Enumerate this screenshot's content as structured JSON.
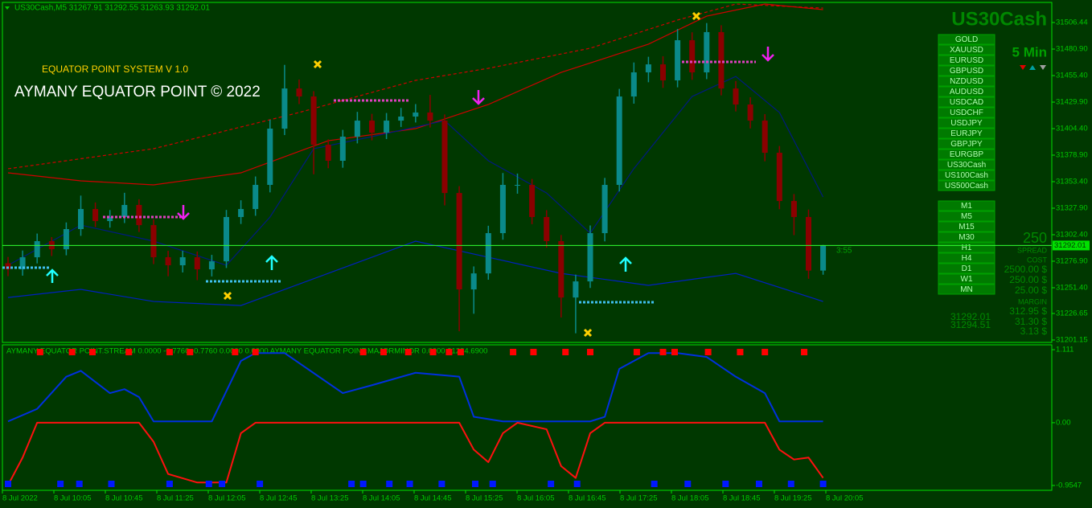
{
  "header": {
    "symbol_line": "US30Cash,M5  31267.91 31292.55 31263.93 31292.01",
    "system_title": "EQUATOR POINT SYSTEM V 1.0",
    "copyright": "AYMANY EQUATOR POINT © 2022",
    "symbol": "US30Cash",
    "timeframe": "5 Min",
    "timer": "3:55",
    "indicator_line": "AYMANY EQUATOR POINT.STREAM 0.0000 -0.7760 -0.7760 0.0000 0.0000  AYMANY EQUATOR POINT.MAJORMINOR 0.0000 31284.6900"
  },
  "symbols": [
    "GOLD",
    "XAUUSD",
    "EURUSD",
    "GBPUSD",
    "NZDUSD",
    "AUDUSD",
    "USDCAD",
    "USDCHF",
    "USDJPY",
    "EURJPY",
    "GBPJPY",
    "EURGBP",
    "US30Cash",
    "US100Cash",
    "US500Cash"
  ],
  "timeframes": [
    "M1",
    "M5",
    "M15",
    "M30",
    "H1",
    "H4",
    "D1",
    "W1",
    "MN"
  ],
  "panel": {
    "spread_value": "250",
    "spread_label": "SPREAD",
    "cost_label": "COST",
    "costs": [
      "2500.00 $",
      "250.00 $",
      "25.00 $"
    ],
    "margin_label": "MARGIN",
    "margins": [
      "312.95 $",
      "31.30 $",
      "3.13 $"
    ],
    "bid": "31292.01",
    "ask": "31294.51"
  },
  "chart_data": [
    {
      "type": "candlestick",
      "ylim": [
        31198.82,
        31525.76
      ],
      "yticks": [
        31506.44,
        {
          "value": 31480.9,
          "label": "31480.90"
        },
        {
          "value": 31455.4,
          "label": "31455.40"
        },
        {
          "value": 31429.9,
          "label": "31429.90"
        },
        {
          "value": 31404.4,
          "label": "31404.40"
        },
        {
          "value": 31378.9,
          "label": "31378.90"
        },
        {
          "value": 31353.4,
          "label": "31353.40"
        },
        {
          "value": 31327.9,
          "label": "31327.90"
        },
        {
          "value": 31302.4,
          "label": "31302.40"
        },
        {
          "value": 31276.9,
          "label": "31276.90"
        },
        {
          "value": 31251.4,
          "label": "31251.40"
        },
        31226.65,
        31201.15
      ],
      "up_color": "#0a8a8a",
      "down_color": "#8b0000",
      "open": [
        31275.0,
        31269.1,
        31280.7,
        31296.2,
        31288.4,
        31307.8,
        31327.1,
        31315.5,
        31319.4,
        31331.0,
        31311.6,
        31280.7,
        31273.0,
        31280.7,
        31269.1,
        31276.8,
        31319.4,
        31327.1,
        31350.3,
        31404.4,
        31443.0,
        31435.3,
        31388.9,
        31373.5,
        31396.7,
        31412.1,
        31400.5,
        31412.1,
        31416.0,
        31419.9,
        31412.1,
        31342.5,
        31249.8,
        31265.2,
        31303.9,
        31350.3,
        31350.3,
        31319.4,
        31296.2,
        31242.0,
        31257.5,
        31303.9,
        31350.3,
        31435.3,
        31458.5,
        31466.2,
        31450.8,
        31489.4,
        31458.5,
        31497.2,
        31443.0,
        31427.6,
        31412.1,
        31381.2,
        31334.8,
        31319.4,
        31267.91
      ],
      "high": [
        31281.0,
        31287.2,
        31303.5,
        31300.1,
        31314.2,
        31340.0,
        31333.4,
        31326.1,
        31342.7,
        31336.5,
        31317.3,
        31286.9,
        31287.0,
        31286.3,
        31283.0,
        31326.2,
        31335.5,
        31358.4,
        31412.9,
        31465.7,
        31451.6,
        31440.4,
        31394.1,
        31403.2,
        31420.5,
        31418.6,
        31419.4,
        31424.3,
        31428.0,
        31436.8,
        31418.0,
        31349.1,
        31271.9,
        31311.0,
        31361.7,
        31361.2,
        31356.0,
        31326.0,
        31302.1,
        31264.0,
        31311.3,
        31357.0,
        31442.6,
        31468.0,
        31473.5,
        31474.0,
        31500.2,
        31497.0,
        31505.9,
        31503.8,
        31450.1,
        31434.5,
        31418.3,
        31387.7,
        31341.5,
        31326.6,
        31292.55
      ],
      "low": [
        31262.5,
        31263.0,
        31274.8,
        31281.9,
        31282.6,
        31301.3,
        31309.8,
        31309.2,
        31313.6,
        31305.0,
        31274.1,
        31262.4,
        31266.1,
        31258.7,
        31262.3,
        31270.4,
        31312.7,
        31320.6,
        31343.1,
        31398.2,
        31428.0,
        31360.5,
        31366.3,
        31366.8,
        31390.2,
        31393.1,
        31394.4,
        31406.0,
        31410.3,
        31405.5,
        31330.6,
        31209.5,
        31226.4,
        31259.1,
        31297.6,
        31341.8,
        31312.5,
        31289.9,
        31222.8,
        31207.6,
        31251.2,
        31296.0,
        31344.0,
        31428.4,
        31449.0,
        31443.6,
        31444.1,
        31451.3,
        31452.0,
        31436.4,
        31420.9,
        31404.6,
        31373.0,
        31326.9,
        31302.0,
        31260.0,
        31263.93
      ],
      "close": [
        31269.1,
        31280.7,
        31296.2,
        31288.4,
        31307.8,
        31327.1,
        31315.5,
        31319.4,
        31331.0,
        31311.6,
        31280.7,
        31273.0,
        31280.7,
        31269.1,
        31276.8,
        31319.4,
        31327.1,
        31350.3,
        31404.4,
        31443.0,
        31435.3,
        31388.9,
        31373.5,
        31396.7,
        31412.1,
        31400.5,
        31412.1,
        31416.0,
        31419.9,
        31412.1,
        31342.5,
        31249.8,
        31265.2,
        31303.9,
        31350.3,
        31350.3,
        31319.4,
        31296.2,
        31242.0,
        31257.5,
        31303.9,
        31350.3,
        31435.3,
        31458.5,
        31466.2,
        31450.8,
        31489.4,
        31458.5,
        31497.2,
        31443.0,
        31427.6,
        31412.1,
        31381.2,
        31334.8,
        31319.4,
        31267.91,
        31292.01
      ],
      "lines": [
        {
          "color": "#d00000",
          "dash": false,
          "x": [
            0,
            5,
            10,
            16,
            22,
            28,
            33,
            38,
            44,
            48,
            52,
            56
          ],
          "values": [
            31361.9,
            31354.2,
            31350.3,
            31361.9,
            31392.8,
            31404.4,
            31427.6,
            31458.5,
            31485.6,
            31512.6,
            31524.2,
            31518.8
          ]
        },
        {
          "color": "#d00000",
          "dash": true,
          "x": [
            0,
            10,
            20,
            28,
            33,
            40,
            46,
            50,
            56
          ],
          "values": [
            31365.8,
            31385.1,
            31419.9,
            31450.8,
            31462.4,
            31481.7,
            31508.8,
            31524.2,
            31520.3
          ]
        },
        {
          "color": "#0020c0",
          "dash": false,
          "x": [
            0,
            5,
            10,
            16,
            22,
            28,
            33,
            38,
            44,
            50,
            56
          ],
          "values": [
            31242.0,
            31249.8,
            31238.2,
            31234.3,
            31265.2,
            31296.2,
            31280.7,
            31265.2,
            31253.7,
            31265.2,
            31238.2
          ]
        },
        {
          "color": "#001a80",
          "dash": false,
          "x": [
            0,
            5,
            10,
            15,
            18,
            21,
            25,
            30,
            33,
            37,
            40,
            43,
            47,
            50,
            53,
            56
          ],
          "values": [
            31273.0,
            31311.6,
            31296.2,
            31273.0,
            31319.4,
            31385.1,
            31396.7,
            31412.1,
            31373.5,
            31342.5,
            31303.9,
            31366.0,
            31435.3,
            31454.6,
            31419.9,
            31338.6
          ]
        }
      ],
      "time_labels": [
        "8 Jul 2022",
        "8 Jul 10:05",
        "8 Jul 10:45",
        "8 Jul 11:25",
        "8 Jul 12:05",
        "8 Jul 12:45",
        "8 Jul 13:25",
        "8 Jul 14:05",
        "8 Jul 14:45",
        "8 Jul 15:25",
        "8 Jul 16:05",
        "8 Jul 16:45",
        "8 Jul 17:25",
        "8 Jul 18:05",
        "8 Jul 18:45",
        "8 Jul 19:25",
        "8 Jul 20:05"
      ]
    },
    {
      "type": "line",
      "ylim": [
        -1.0285,
        1.1848
      ],
      "yticks": [
        1.111,
        {
          "value": 0,
          "label": "0.00"
        },
        -0.9547
      ],
      "series": [
        {
          "color": "#0030e0",
          "x": [
            0,
            2,
            4,
            5,
            7,
            8,
            9,
            10,
            12,
            14,
            16,
            17,
            19,
            23,
            25,
            28,
            31,
            32,
            34,
            36,
            38,
            40,
            41,
            42,
            44,
            46,
            48,
            50,
            52,
            53,
            56
          ],
          "values": [
            0.02,
            0.21,
            0.7,
            0.79,
            0.45,
            0.51,
            0.39,
            0.02,
            0.02,
            0.02,
            0.94,
            1.06,
            1.06,
            0.45,
            0.57,
            0.76,
            0.7,
            0.09,
            0.02,
            0.02,
            0.02,
            0.02,
            0.09,
            0.82,
            1.06,
            1.06,
            1.0,
            0.7,
            0.45,
            0.02,
            0.02
          ]
        },
        {
          "color": "#ff1010",
          "x": [
            0,
            1,
            2,
            9,
            10,
            11,
            13,
            15,
            16,
            17,
            31,
            32,
            33,
            34,
            35,
            37,
            38,
            39,
            40,
            41,
            52,
            53,
            54,
            55,
            56
          ],
          "values": [
            -0.95,
            -0.53,
            0,
            0,
            -0.29,
            -0.78,
            -0.91,
            -0.91,
            -0.16,
            0,
            0,
            -0.41,
            -0.6,
            -0.16,
            0,
            -0.1,
            -0.66,
            -0.84,
            -0.16,
            0,
            0,
            -0.41,
            -0.56,
            -0.53,
            -0.84
          ]
        }
      ],
      "top_signals_x": [
        2.2,
        4.4,
        5.8,
        8.3,
        11.1,
        12.5,
        15.6,
        17,
        24.4,
        25.8,
        27.5,
        29.2,
        30.3,
        31.1,
        34.7,
        36.1,
        38.3,
        40,
        43.2,
        45,
        45.8,
        48.1,
        50.3,
        52,
        54.7
      ],
      "bottom_signals_x": [
        0,
        3.6,
        4.9,
        7.1,
        11.1,
        13.8,
        14.7,
        17.3,
        23.6,
        24.4,
        26.2,
        27.6,
        29.8,
        32.1,
        33.3,
        37.3,
        39.1,
        44.4,
        46.7,
        49.3,
        51.6,
        53.8,
        56
      ]
    }
  ]
}
